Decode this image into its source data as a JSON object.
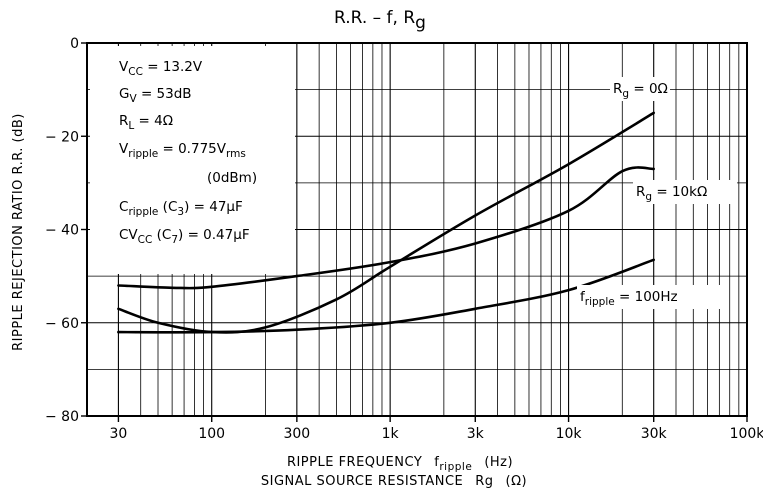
{
  "chart_data": {
    "type": "line",
    "title": {
      "main": "R.R.  –  f, R",
      "main_sub": "g"
    },
    "xlabel_line1": {
      "text": "RIPPLE  FREQUENCY",
      "var": "f",
      "var_sub": "ripple",
      "unit": "(Hz)"
    },
    "xlabel_line2": {
      "text": "SIGNAL  SOURCE  RESISTANCE",
      "var": "Rg",
      "unit": "(Ω)"
    },
    "ylabel": "RIPPLE  REJECTION  RATIO    R.R.   (dB)",
    "x_scale": "log",
    "xlim": [
      20,
      100000
    ],
    "ylim": [
      -80,
      0
    ],
    "grid": true,
    "xticks": [
      {
        "value": 30,
        "label": "30"
      },
      {
        "value": 100,
        "label": "100"
      },
      {
        "value": 300,
        "label": "300"
      },
      {
        "value": 1000,
        "label": "1k"
      },
      {
        "value": 3000,
        "label": "3k"
      },
      {
        "value": 10000,
        "label": "10k"
      },
      {
        "value": 30000,
        "label": "30k"
      },
      {
        "value": 100000,
        "label": "100k"
      }
    ],
    "yticks": [
      {
        "value": 0,
        "label": "0"
      },
      {
        "value": -20,
        "label": "− 20"
      },
      {
        "value": -40,
        "label": "− 40"
      },
      {
        "value": -60,
        "label": "− 60"
      },
      {
        "value": -80,
        "label": "− 80"
      }
    ],
    "conditions": [
      {
        "main": "V",
        "sub": "CC",
        "rest": " = 13.2V"
      },
      {
        "main": "G",
        "sub": "V",
        "rest": " = 53dB"
      },
      {
        "main": "R",
        "sub": "L",
        "rest": " = 4Ω"
      },
      {
        "main": "V",
        "sub": "ripple",
        "rest": " = 0.775V",
        "sub2": "rms"
      },
      {
        "main": "",
        "sub": "",
        "rest": "(0dBm)"
      },
      {
        "main": "C",
        "sub": "ripple",
        "rest": "  (C",
        "sub2": "3",
        "rest2": ") = 47μF"
      },
      {
        "main": "CV",
        "sub": "CC",
        "rest": "  (C",
        "sub2": "7",
        "rest2": ") = 0.47μF"
      }
    ],
    "series": [
      {
        "label": {
          "main": "R",
          "sub": "g",
          "rest": " = 0Ω"
        },
        "points": [
          [
            30,
            -57
          ],
          [
            50,
            -60
          ],
          [
            100,
            -62
          ],
          [
            200,
            -61
          ],
          [
            500,
            -55
          ],
          [
            1000,
            -48
          ],
          [
            3000,
            -37
          ],
          [
            10000,
            -26
          ],
          [
            30000,
            -15
          ]
        ]
      },
      {
        "label": {
          "main": "R",
          "sub": "g",
          "rest": " = 10kΩ"
        },
        "points": [
          [
            30,
            -52
          ],
          [
            60,
            -52.5
          ],
          [
            100,
            -52.3
          ],
          [
            300,
            -50
          ],
          [
            1000,
            -47
          ],
          [
            3000,
            -43
          ],
          [
            10000,
            -36
          ],
          [
            20000,
            -27.5
          ],
          [
            30000,
            -27
          ]
        ]
      },
      {
        "label": {
          "main": "f",
          "sub": "ripple",
          "rest": " = 100Hz"
        },
        "points": [
          [
            30,
            -62
          ],
          [
            100,
            -62
          ],
          [
            300,
            -61.5
          ],
          [
            1000,
            -60
          ],
          [
            3000,
            -57
          ],
          [
            10000,
            -53
          ],
          [
            30000,
            -46.5
          ]
        ]
      }
    ]
  }
}
